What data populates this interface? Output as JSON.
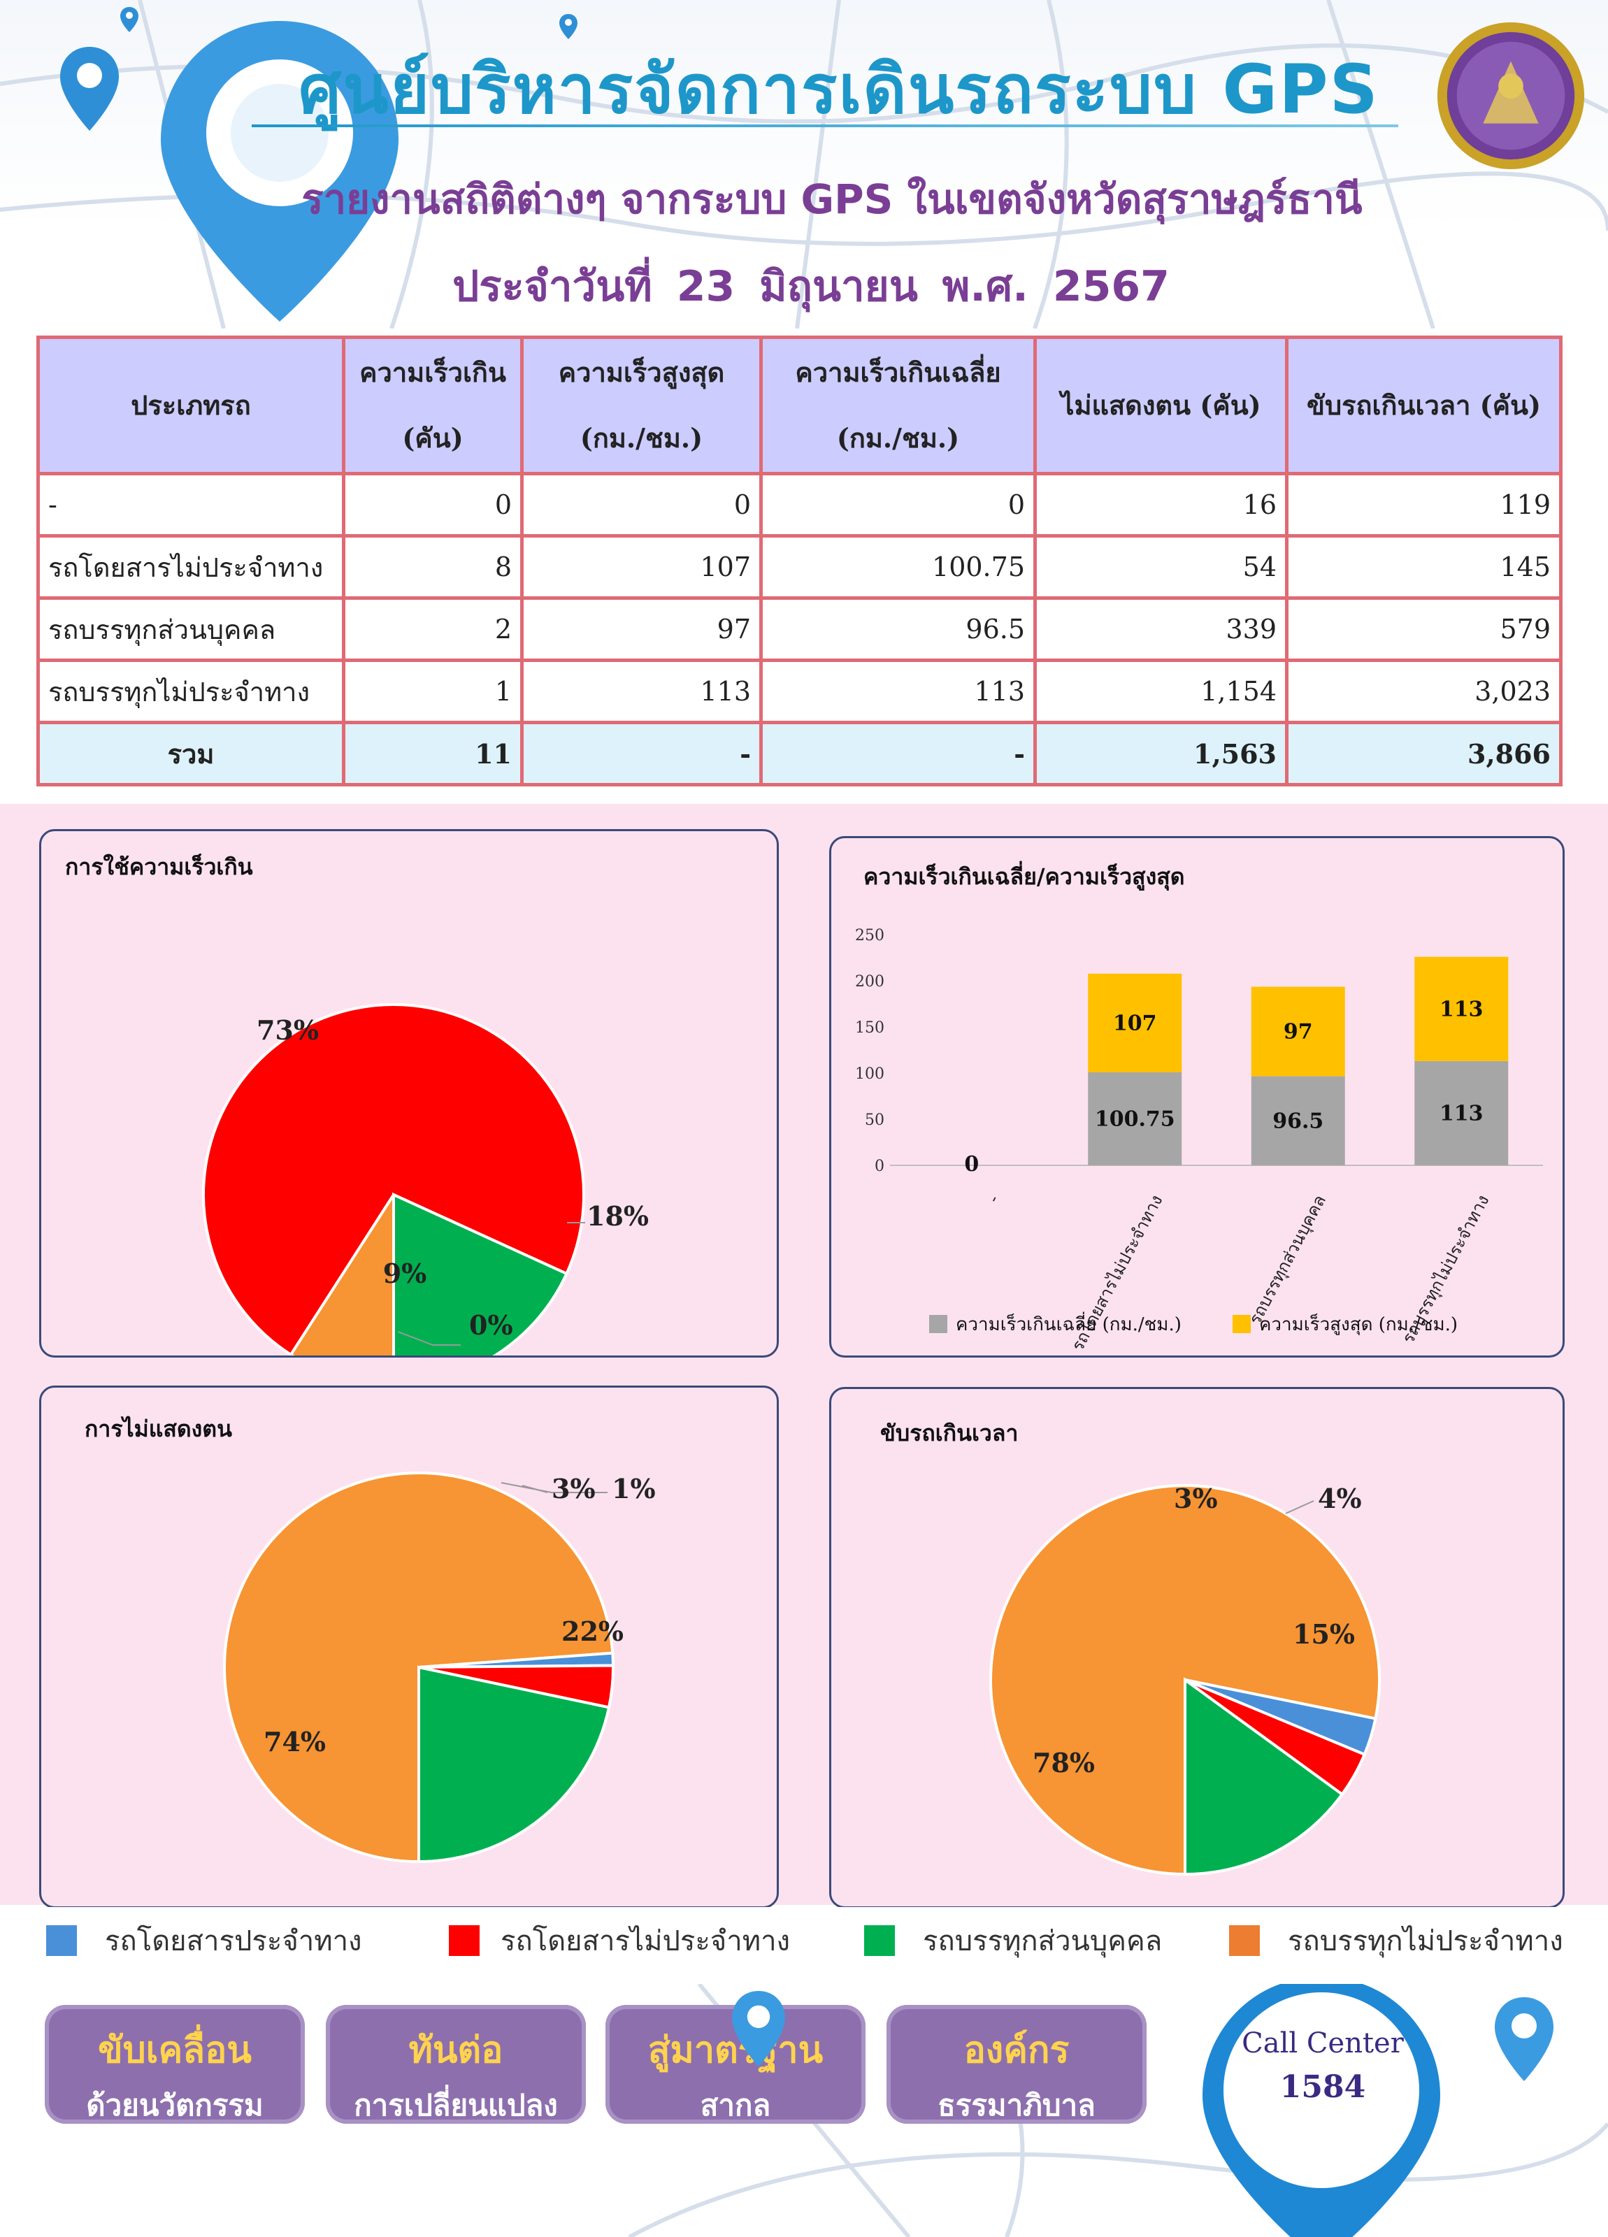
{
  "header": {
    "title": "ศูนย์บริหารจัดการเดินรถระบบ GPS",
    "subtitle": "รายงานสถิติต่างๆ จากระบบ GPS ในเขตจังหวัดสุราษฎร์ธานี",
    "date": "ประจำวันที่ 23 มิถุนายน พ.ศ. 2567"
  },
  "table": {
    "headers": [
      "ประเภทรถ",
      "ความเร็วเกิน (คัน)",
      "ความเร็วสูงสุด (กม./ชม.)",
      "ความเร็วเกินเฉลี่ย (กม./ชม.)",
      "ไม่แสดงตน (คัน)",
      "ขับรถเกินเวลา (คัน)"
    ],
    "rows": [
      [
        "-",
        "0",
        "0",
        "0",
        "16",
        "119"
      ],
      [
        "รถโดยสารไม่ประจำทาง",
        "8",
        "107",
        "100.75",
        "54",
        "145"
      ],
      [
        "รถบรรทุกส่วนบุคคล",
        "2",
        "97",
        "96.5",
        "339",
        "579"
      ],
      [
        "รถบรรทุกไม่ประจำทาง",
        "1",
        "113",
        "113",
        "1,154",
        "3,023"
      ]
    ],
    "total": [
      "รวม",
      "11",
      "-",
      "-",
      "1,563",
      "3,866"
    ]
  },
  "colors": {
    "blue": "#4a90d9",
    "red": "#ff0000",
    "green": "#00b050",
    "orange": "#f79433",
    "gray": "#a6a6a6",
    "yellow": "#ffc000"
  },
  "chart_data": [
    {
      "type": "pie",
      "title": "การใช้ความเร็วเกิน",
      "labels": [
        "รถโดยสารประจำทาง",
        "รถโดยสารไม่ประจำทาง",
        "รถบรรทุกส่วนบุคคล",
        "รถบรรทุกไม่ประจำทาง"
      ],
      "values": [
        0,
        8,
        2,
        1
      ],
      "percent_labels": [
        "0%",
        "73%",
        "18%",
        "9%"
      ]
    },
    {
      "type": "bar",
      "stacked": true,
      "title": "ความเร็วเกินเฉลี่ย/ความเร็วสูงสุด",
      "categories": [
        "-",
        "รถโดยสารไม่ประจำทาง",
        "รถบรรทุกส่วนบุคคล",
        "รถบรรทุกไม่ประจำทาง"
      ],
      "series": [
        {
          "name": "ความเร็วเกินเฉลี่ย (กม./ชม.)",
          "values": [
            0,
            100.75,
            96.5,
            113
          ]
        },
        {
          "name": "ความเร็วสูงสุด (กม./ชม.)",
          "values": [
            0,
            107,
            97,
            113
          ]
        }
      ],
      "value_labels": [
        [
          "0",
          "100.75",
          "96.5",
          "113"
        ],
        [
          "0",
          "107",
          "97",
          "113"
        ]
      ],
      "yticks": [
        "0",
        "50",
        "100",
        "150",
        "200",
        "250"
      ],
      "ylim": [
        0,
        250
      ],
      "legend_position": "bottom"
    },
    {
      "type": "pie",
      "title": "การไม่แสดงตน",
      "labels": [
        "รถโดยสารประจำทาง",
        "รถโดยสารไม่ประจำทาง",
        "รถบรรทุกส่วนบุคคล",
        "รถบรรทุกไม่ประจำทาง"
      ],
      "values": [
        16,
        54,
        339,
        1154
      ],
      "percent_labels": [
        "1%",
        "3%",
        "22%",
        "74%"
      ]
    },
    {
      "type": "pie",
      "title": "ขับรถเกินเวลา",
      "labels": [
        "รถโดยสารประจำทาง",
        "รถโดยสารไม่ประจำทาง",
        "รถบรรทุกส่วนบุคคล",
        "รถบรรทุกไม่ประจำทาง"
      ],
      "values": [
        119,
        145,
        579,
        3023
      ],
      "percent_labels": [
        "3%",
        "4%",
        "15%",
        "78%"
      ]
    }
  ],
  "legend": {
    "items": [
      "รถโดยสารประจำทาง",
      "รถโดยสารไม่ประจำทาง",
      "รถบรรทุกส่วนบุคคล",
      "รถบรรทุกไม่ประจำทาง"
    ]
  },
  "footer": {
    "slogans": [
      {
        "line1": "ขับเคลื่อน",
        "line2": "ด้วยนวัตกรรม"
      },
      {
        "line1": "ทันต่อ",
        "line2": "การเปลี่ยนแปลง"
      },
      {
        "line1": "สู่มาตรฐาน",
        "line2": "สากล"
      },
      {
        "line1": "องค์กร",
        "line2": "ธรรมาภิบาล"
      }
    ],
    "call_center_label": "Call Center",
    "call_center_number": "1584"
  }
}
